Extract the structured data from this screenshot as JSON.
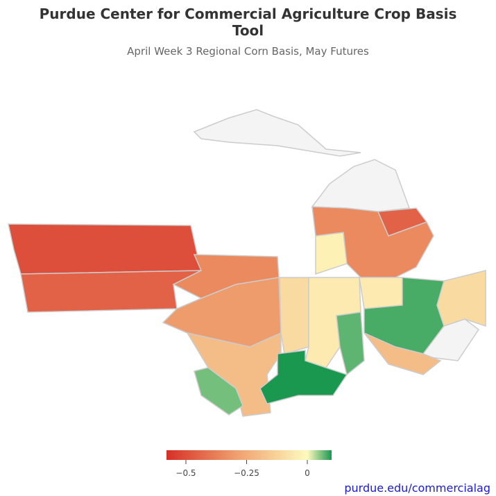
{
  "chart_data": {
    "type": "choropleth",
    "title": "Purdue Center for Commercial Agriculture Crop Basis Tool",
    "subtitle": "April Week 3 Regional Corn Basis, May Futures",
    "values": [
      -0.5,
      -0.45,
      -0.35,
      -0.3,
      -0.2,
      0.06,
      -0.1,
      -0.05,
      0.07,
      0.1,
      null,
      null,
      -0.03,
      -0.35,
      -0.45,
      -0.05,
      0.08,
      -0.1,
      null,
      -0.2
    ],
    "colorlim": [
      -0.58,
      0.1
    ],
    "colorticks": [
      {
        "value": -0.5,
        "label": "−0.5"
      },
      {
        "value": -0.25,
        "label": "−0.25"
      },
      0
    ],
    "footer": "purdue.edu/commercialag"
  }
}
